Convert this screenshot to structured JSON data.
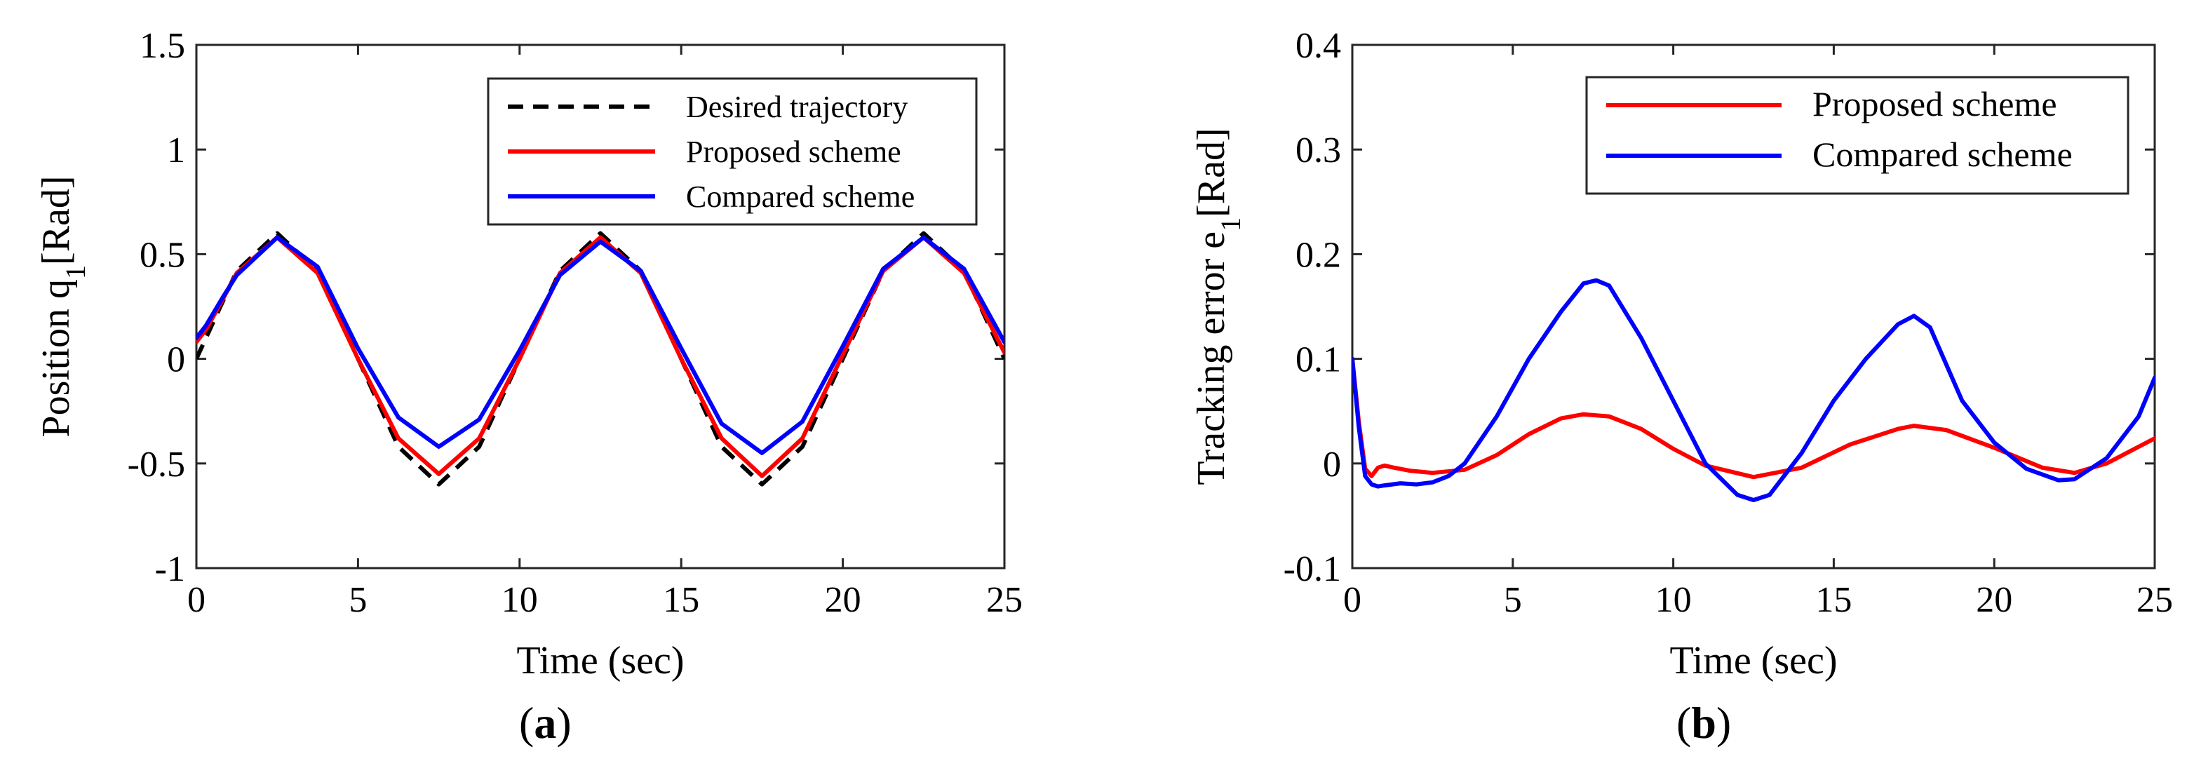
{
  "chart_data": [
    {
      "id": "a",
      "type": "line",
      "caption_open": "(",
      "caption_letter": "a",
      "caption_close": ")",
      "xlabel": "Time (sec)",
      "ylabel_main": "Position q",
      "ylabel_sub": "1",
      "ylabel_unit": "[Rad]",
      "xlim": [
        0,
        25
      ],
      "ylim": [
        -1,
        1.5
      ],
      "xticks": [
        0,
        5,
        10,
        15,
        20,
        25
      ],
      "xtick_labels": [
        "0",
        "5",
        "10",
        "15",
        "20",
        "25"
      ],
      "yticks": [
        -1,
        -0.5,
        0,
        0.5,
        1,
        1.5
      ],
      "ytick_labels": [
        "-1",
        "-0.5",
        "0",
        "0.5",
        "1",
        "1.5"
      ],
      "legend_position": "top-right",
      "series": [
        {
          "name": "Desired trajectory",
          "color": "#000000",
          "dash": "dashed",
          "x": [
            0,
            1.25,
            2.5,
            3.75,
            5,
            6.25,
            7.5,
            8.75,
            10,
            11.25,
            12.5,
            13.75,
            15,
            16.25,
            17.5,
            18.75,
            20,
            21.25,
            22.5,
            23.75,
            25
          ],
          "y": [
            0.0,
            0.42,
            0.6,
            0.42,
            0.0,
            -0.42,
            -0.6,
            -0.42,
            0.0,
            0.42,
            0.6,
            0.42,
            0.0,
            -0.42,
            -0.6,
            -0.42,
            0.0,
            0.42,
            0.6,
            0.42,
            0.0
          ]
        },
        {
          "name": "Proposed scheme",
          "color": "#ff0000",
          "dash": "solid",
          "x": [
            0,
            0.3,
            0.8,
            1.25,
            2.5,
            3.75,
            5,
            6.25,
            7.5,
            8.75,
            10,
            11.25,
            12.5,
            13.75,
            15,
            16.25,
            17.5,
            18.75,
            20,
            21.25,
            22.5,
            23.75,
            25
          ],
          "y": [
            0.08,
            0.14,
            0.28,
            0.41,
            0.58,
            0.41,
            0.0,
            -0.38,
            -0.55,
            -0.38,
            0.0,
            0.41,
            0.58,
            0.41,
            0.0,
            -0.38,
            -0.56,
            -0.38,
            0.02,
            0.42,
            0.58,
            0.41,
            0.03
          ]
        },
        {
          "name": "Compared scheme",
          "color": "#0000ff",
          "dash": "solid",
          "x": [
            0,
            0.3,
            0.8,
            1.25,
            2.5,
            3.75,
            5,
            6.25,
            7.5,
            8.75,
            10,
            11.25,
            12.5,
            13.75,
            15,
            16.25,
            17.5,
            18.75,
            20,
            21.25,
            22.5,
            23.75,
            25
          ],
          "y": [
            0.1,
            0.16,
            0.29,
            0.4,
            0.58,
            0.44,
            0.05,
            -0.28,
            -0.42,
            -0.29,
            0.04,
            0.4,
            0.56,
            0.42,
            0.05,
            -0.31,
            -0.45,
            -0.3,
            0.06,
            0.43,
            0.58,
            0.43,
            0.08
          ]
        }
      ]
    },
    {
      "id": "b",
      "type": "line",
      "caption_open": "(",
      "caption_letter": "b",
      "caption_close": ")",
      "xlabel": "Time (sec)",
      "ylabel_main": "Tracking error e",
      "ylabel_sub": "1",
      "ylabel_unit": "[Rad]",
      "xlim": [
        0,
        25
      ],
      "ylim": [
        -0.1,
        0.4
      ],
      "xticks": [
        0,
        5,
        10,
        15,
        20,
        25
      ],
      "xtick_labels": [
        "0",
        "5",
        "10",
        "15",
        "20",
        "25"
      ],
      "yticks": [
        -0.1,
        0,
        0.1,
        0.2,
        0.3,
        0.4
      ],
      "ytick_labels": [
        "-0.1",
        "0",
        "0.1",
        "0.2",
        "0.3",
        "0.4"
      ],
      "legend_position": "top-right",
      "series": [
        {
          "name": "Proposed scheme",
          "color": "#ff0000",
          "dash": "solid",
          "x": [
            0,
            0.2,
            0.4,
            0.6,
            0.8,
            1.0,
            1.3,
            1.8,
            2.5,
            3.5,
            4.5,
            5.5,
            6.5,
            7.2,
            8,
            9,
            10,
            11,
            12.5,
            14,
            15.5,
            17,
            17.5,
            18.5,
            20,
            21.5,
            22.5,
            23.5,
            25
          ],
          "y": [
            0.1,
            0.04,
            -0.005,
            -0.012,
            -0.004,
            -0.002,
            -0.004,
            -0.007,
            -0.009,
            -0.006,
            0.008,
            0.028,
            0.043,
            0.047,
            0.045,
            0.033,
            0.014,
            -0.002,
            -0.013,
            -0.004,
            0.018,
            0.033,
            0.036,
            0.032,
            0.015,
            -0.004,
            -0.009,
            0.0,
            0.024
          ]
        },
        {
          "name": "Compared scheme",
          "color": "#0000ff",
          "dash": "solid",
          "x": [
            0,
            0.2,
            0.4,
            0.6,
            0.8,
            1.0,
            1.5,
            2.0,
            2.5,
            3.0,
            3.5,
            4.5,
            5.5,
            6.5,
            7.2,
            7.6,
            8,
            9,
            10,
            11,
            12,
            12.5,
            13,
            14,
            15,
            16,
            17,
            17.5,
            18,
            19,
            20,
            21,
            22,
            22.5,
            23.5,
            24.5,
            25
          ],
          "y": [
            0.1,
            0.035,
            -0.012,
            -0.02,
            -0.022,
            -0.021,
            -0.019,
            -0.02,
            -0.018,
            -0.012,
            0.0,
            0.045,
            0.1,
            0.145,
            0.172,
            0.175,
            0.17,
            0.12,
            0.06,
            0.0,
            -0.03,
            -0.035,
            -0.03,
            0.01,
            0.06,
            0.1,
            0.133,
            0.141,
            0.13,
            0.06,
            0.02,
            -0.005,
            -0.016,
            -0.015,
            0.005,
            0.045,
            0.082
          ]
        }
      ]
    }
  ]
}
